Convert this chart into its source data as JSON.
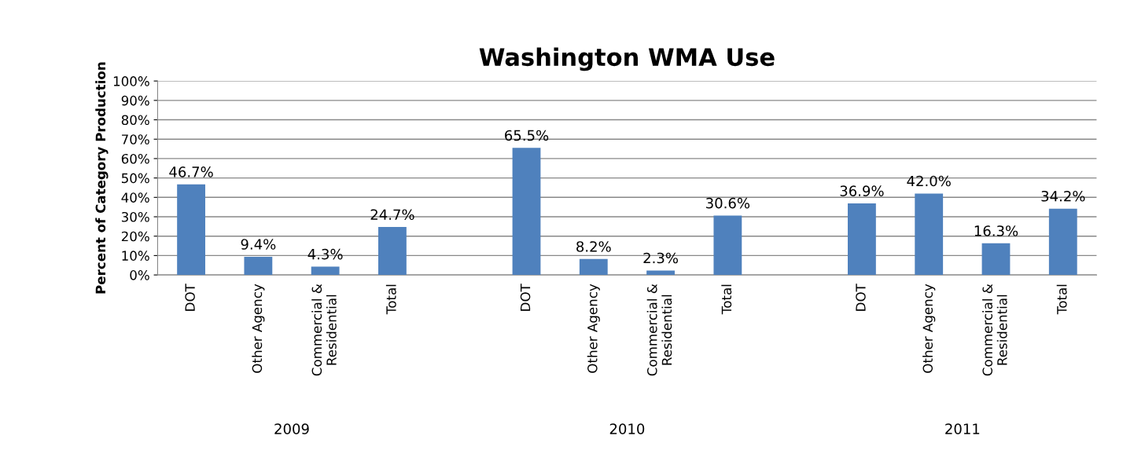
{
  "chart_data": {
    "type": "bar",
    "title": "Washington WMA Use",
    "ylabel": "Percent of Category Production",
    "categories": [
      "DOT",
      "Other Agency",
      "Commercial &\nResidential",
      "Total",
      null,
      "DOT",
      "Other Agency",
      "Commercial &\nResidential",
      "Total",
      null,
      "DOT",
      "Other Agency",
      "Commercial &\nResidential",
      "Total"
    ],
    "values": [
      46.7,
      9.4,
      4.3,
      24.7,
      null,
      65.5,
      8.2,
      2.3,
      30.6,
      null,
      36.9,
      42.0,
      16.3,
      34.2
    ],
    "value_labels": [
      "46.7%",
      "9.4%",
      "4.3%",
      "24.7%",
      null,
      "65.5%",
      "8.2%",
      "2.3%",
      "30.6%",
      null,
      "36.9%",
      "42.0%",
      "16.3%",
      "34.2%"
    ],
    "color": "#4f81bd",
    "ylim": [
      0,
      100
    ],
    "yticks": [
      {
        "value": 0,
        "label": "0%"
      },
      {
        "value": 10,
        "label": "10%"
      },
      {
        "value": 20,
        "label": "20%"
      },
      {
        "value": 30,
        "label": "30%"
      },
      {
        "value": 40,
        "label": "40%"
      },
      {
        "value": 50,
        "label": "50%"
      },
      {
        "value": 60,
        "label": "60%"
      },
      {
        "value": 70,
        "label": "70%"
      },
      {
        "value": 80,
        "label": "80%"
      },
      {
        "value": 90,
        "label": "90%"
      },
      {
        "value": 100,
        "label": "100%"
      }
    ],
    "grid": "y",
    "annotations": [
      "2009",
      "2010",
      "2011"
    ]
  }
}
